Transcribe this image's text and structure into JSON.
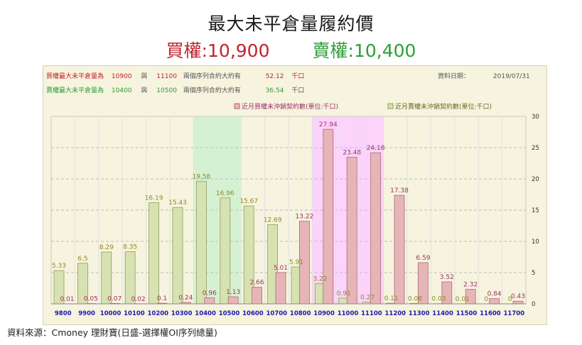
{
  "title": "最大未平倉量履約價",
  "subtitle": {
    "call_label": "買權",
    "call_value": ":10,900",
    "put_label": "賣權",
    "put_value": ":10,400"
  },
  "info": {
    "call_row": {
      "prefix": "買權最大未平倉量為",
      "strike1": "10900",
      "conj": "與",
      "strike2": "11100",
      "text": "兩個序列合約大約有",
      "value": "52.12",
      "unit": "千口"
    },
    "put_row": {
      "prefix": "賣權最大未平倉量為",
      "strike1": "10400",
      "conj": "與",
      "strike2": "10500",
      "text": "兩個序列合約大約有",
      "value": "36.54",
      "unit": "千口"
    },
    "date_label": "資料日期：",
    "date_value": "2019/07/31"
  },
  "source": "資料來源：Cmoney 理財寶(日盛-選擇權OI序列總量)",
  "colors": {
    "call_bar": "#e6b5b8",
    "call_bar_stroke": "#b06a70",
    "put_bar": "#d6e2b1",
    "put_bar_stroke": "#8ea05a",
    "call_label": "#a0306a",
    "put_label": "#8c8a1f",
    "highlight_green": "#d4f2d2",
    "highlight_pink": "#fbd3fb",
    "axis_label": "#1a1ab0"
  },
  "chart_data": {
    "type": "bar",
    "categories": [
      "9800",
      "9900",
      "10000",
      "10100",
      "10200",
      "10300",
      "10400",
      "10500",
      "10600",
      "10700",
      "10800",
      "10900",
      "11000",
      "11100",
      "11200",
      "11300",
      "11400",
      "11500",
      "11600",
      "11700"
    ],
    "series": [
      {
        "name": "近月買權未沖銷契約數(單位:千口)",
        "values": [
          0.01,
          0.05,
          0.07,
          0.02,
          0.1,
          0.24,
          0.96,
          1.13,
          2.66,
          5.01,
          13.22,
          27.94,
          23.48,
          24.18,
          17.38,
          6.59,
          3.52,
          2.32,
          0.84,
          0.43
        ],
        "labels": [
          "0.01",
          "0.05",
          "0.07",
          "0.02",
          "0.1",
          "0.24",
          "0.96",
          "1.13",
          "2.66",
          "5.01",
          "13.22",
          "27.94",
          "23.48",
          "24.18",
          "17.38",
          "6.59",
          "3.52",
          "2.32",
          "0.84",
          "0.43"
        ]
      },
      {
        "name": "近月賣權未沖銷契約數(單位:千口)",
        "values": [
          5.33,
          6.5,
          8.29,
          8.35,
          16.19,
          15.43,
          19.58,
          16.96,
          15.67,
          12.69,
          5.91,
          3.22,
          0.91,
          0.27,
          0.11,
          0.08,
          0.03,
          0.01,
          0,
          0
        ],
        "labels": [
          "5.33",
          "6.5",
          "8.29",
          "8.35",
          "16.19",
          "15.43",
          "19.58",
          "16.96",
          "15.67",
          "12.69",
          "5.91",
          "3.22",
          "0.91",
          "0.27",
          "0.11",
          "0.08",
          "0.03",
          "0.01",
          "0",
          "0"
        ]
      }
    ],
    "ylim": [
      0,
      30
    ],
    "yticks": [
      "0",
      "5",
      "10",
      "15",
      "20",
      "25",
      "30"
    ],
    "highlight_put": [
      "10400",
      "10500"
    ],
    "highlight_call": [
      "10900",
      "11100"
    ],
    "grid": true,
    "legend_position": "top-right"
  }
}
